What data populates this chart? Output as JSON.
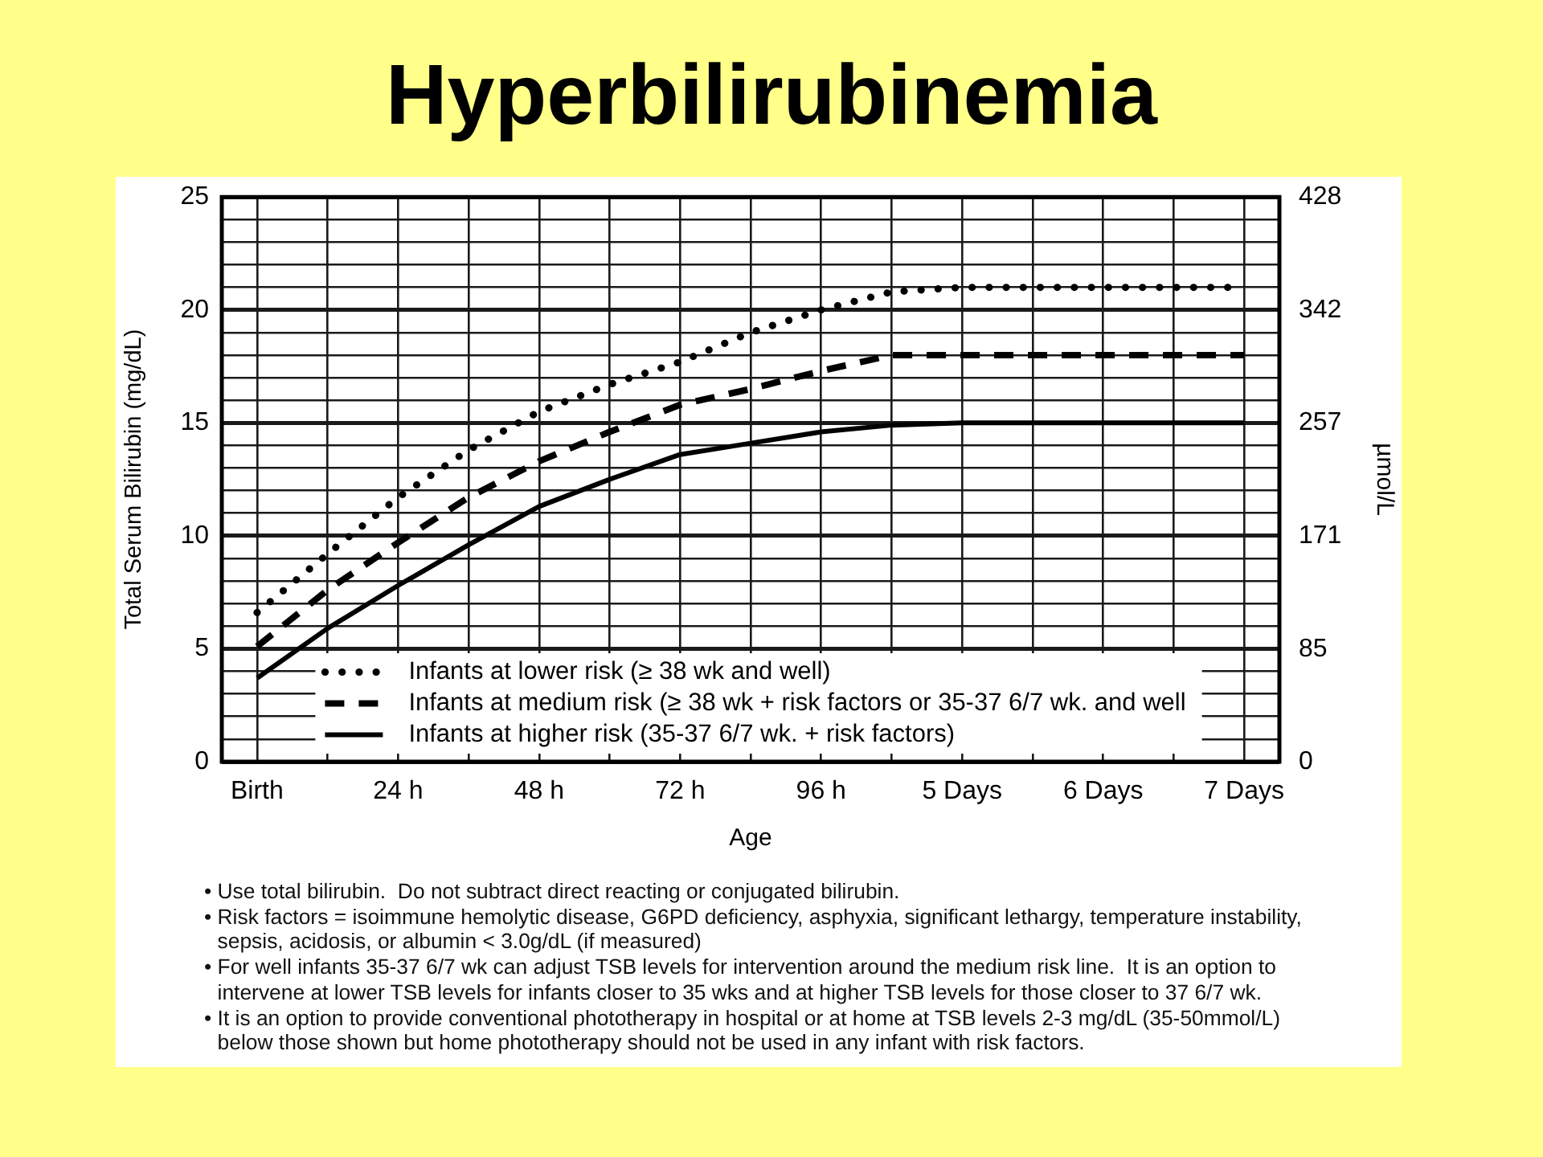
{
  "chart_data": {
    "type": "line",
    "title": "Hyperbilirubinemia",
    "xlabel": "Age",
    "ylabel": "Total Serum Bilirubin (mg/dL)",
    "y2label": "µmol/L",
    "categories": [
      "Birth",
      null,
      "24 h",
      null,
      "48 h",
      null,
      "72 h",
      null,
      "96 h",
      null,
      "5 Days",
      null,
      "6 Days",
      null,
      "7 Days"
    ],
    "series": [
      {
        "name": "Infants at lower risk (≥ 38 wk and well)",
        "color": "#000000",
        "line_style": "dotted",
        "values": [
          6.6,
          9.2,
          11.7,
          13.8,
          15.5,
          16.7,
          17.7,
          19.0,
          20.0,
          20.8,
          21,
          21,
          21,
          21,
          21
        ]
      },
      {
        "name": "Infants at medium risk (≥ 38 wk + risk factors or 35-37 6/7 wk. and well",
        "color": "#000000",
        "line_style": "dashed",
        "values": [
          5.1,
          7.6,
          9.7,
          11.7,
          13.3,
          14.6,
          15.8,
          16.5,
          17.3,
          18,
          18,
          18,
          18,
          18,
          18
        ]
      },
      {
        "name": "Infants at higher risk (35-37 6/7 wk. + risk factors)",
        "color": "#000000",
        "line_style": "solid",
        "values": [
          3.7,
          5.9,
          7.8,
          9.6,
          11.3,
          12.5,
          13.6,
          14.1,
          14.6,
          14.9,
          15,
          15,
          15,
          15,
          15
        ]
      }
    ],
    "ylim": [
      0,
      25
    ],
    "yticks": [
      0,
      {
        "value": 1,
        "label": null
      },
      {
        "value": 2,
        "label": null
      },
      {
        "value": 3,
        "label": null
      },
      {
        "value": 4,
        "label": null
      },
      5,
      {
        "value": 6,
        "label": null
      },
      {
        "value": 7,
        "label": null
      },
      {
        "value": 8,
        "label": null
      },
      {
        "value": 9,
        "label": null
      },
      10,
      {
        "value": 11,
        "label": null
      },
      {
        "value": 12,
        "label": null
      },
      {
        "value": 13,
        "label": null
      },
      {
        "value": 14,
        "label": null
      },
      15,
      {
        "value": 16,
        "label": null
      },
      {
        "value": 17,
        "label": null
      },
      {
        "value": 18,
        "label": null
      },
      {
        "value": 19,
        "label": null
      },
      20,
      {
        "value": 21,
        "label": null
      },
      {
        "value": 22,
        "label": null
      },
      {
        "value": 23,
        "label": null
      },
      {
        "value": 24,
        "label": null
      },
      25
    ],
    "y2lim": [
      0,
      428
    ],
    "y2ticks": [
      0,
      85,
      171,
      257,
      342,
      428
    ],
    "grid": true,
    "legend": "bottom",
    "marker": "none",
    "annotations": [
      "• Use total bilirubin.  Do not subtract direct reacting or conjugated bilirubin.",
      "• Risk factors = isoimmune hemolytic disease, G6PD deficiency, asphyxia, significant lethargy, temperature instability, sepsis, acidosis, or albumin < 3.0g/dL (if measured)",
      "• For well infants 35-37 6/7 wk can adjust TSB levels for intervention around the medium risk line.  It is an option to intervene at lower TSB levels for infants closer to 35 wks and at higher TSB levels for those closer to 37 6/7 wk.",
      "• It is an option to provide conventional phototherapy in hospital or at home at TSB levels 2-3 mg/dL (35-50mmol/L) below those shown but home phototherapy should not be used in any infant with risk factors."
    ]
  }
}
